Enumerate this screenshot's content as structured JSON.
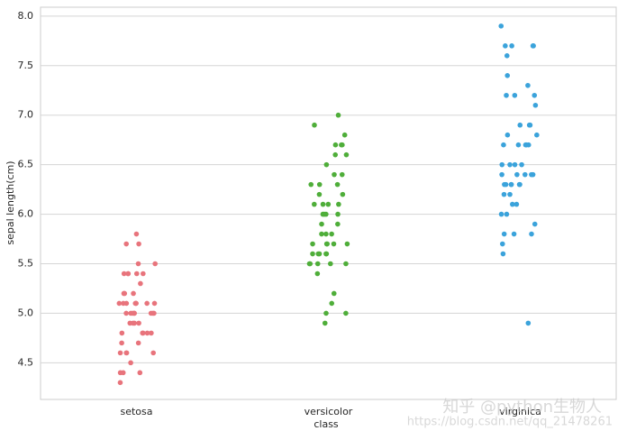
{
  "chart_data": {
    "type": "strip",
    "x_label": "class",
    "y_label": "sepal length(cm)",
    "categories": [
      "setosa",
      "versicolor",
      "virginica"
    ],
    "series": [
      {
        "color": "#e8747c",
        "values": [
          5.1,
          4.9,
          4.7,
          4.6,
          5.0,
          5.4,
          4.6,
          5.0,
          4.4,
          4.9,
          5.4,
          4.8,
          4.8,
          4.3,
          5.8,
          5.7,
          5.4,
          5.1,
          5.7,
          5.1,
          5.4,
          5.1,
          4.6,
          5.1,
          4.8,
          5.0,
          5.0,
          5.2,
          5.2,
          4.7,
          4.8,
          5.4,
          5.2,
          5.5,
          4.9,
          5.0,
          5.5,
          4.9,
          4.4,
          5.1,
          5.0,
          4.5,
          4.4,
          5.0,
          5.1,
          4.8,
          5.1,
          4.6,
          5.3,
          5.0
        ]
      },
      {
        "color": "#4fae3a",
        "values": [
          7.0,
          6.4,
          6.9,
          5.5,
          6.5,
          5.7,
          6.3,
          4.9,
          6.6,
          5.2,
          5.0,
          5.9,
          6.0,
          6.1,
          5.6,
          6.7,
          5.6,
          5.8,
          6.2,
          5.6,
          5.9,
          6.1,
          6.3,
          6.1,
          6.4,
          6.6,
          6.8,
          6.7,
          6.0,
          5.7,
          5.5,
          5.5,
          5.8,
          6.0,
          5.4,
          6.0,
          6.7,
          6.3,
          5.6,
          5.5,
          5.5,
          6.1,
          5.8,
          5.0,
          5.6,
          5.7,
          5.7,
          6.2,
          5.1,
          5.7
        ]
      },
      {
        "color": "#3ba3db",
        "values": [
          6.3,
          5.8,
          7.1,
          6.3,
          6.5,
          7.6,
          4.9,
          7.3,
          6.7,
          7.2,
          6.5,
          6.4,
          6.8,
          5.7,
          5.8,
          6.4,
          6.5,
          7.7,
          7.7,
          6.0,
          6.9,
          5.6,
          7.7,
          6.3,
          6.7,
          7.2,
          6.2,
          6.1,
          6.4,
          7.2,
          7.4,
          7.9,
          6.4,
          6.3,
          6.1,
          7.7,
          6.3,
          6.4,
          6.0,
          6.9,
          6.7,
          6.9,
          5.8,
          6.8,
          6.7,
          6.7,
          6.3,
          6.5,
          6.2,
          5.9
        ]
      }
    ],
    "ylim": [
      4.13,
      8.09
    ],
    "yticks": [
      4.5,
      {
        "value": 5,
        "label": "5.0"
      },
      5.5,
      {
        "value": 6,
        "label": "6.0"
      },
      6.5,
      {
        "value": 7,
        "label": "7.0"
      },
      7.5,
      {
        "value": 8,
        "label": "8.0"
      }
    ],
    "grid": true,
    "watermark": [
      "知乎 @python生物人",
      "https://blog.csdn.net/qq_21478261"
    ]
  }
}
